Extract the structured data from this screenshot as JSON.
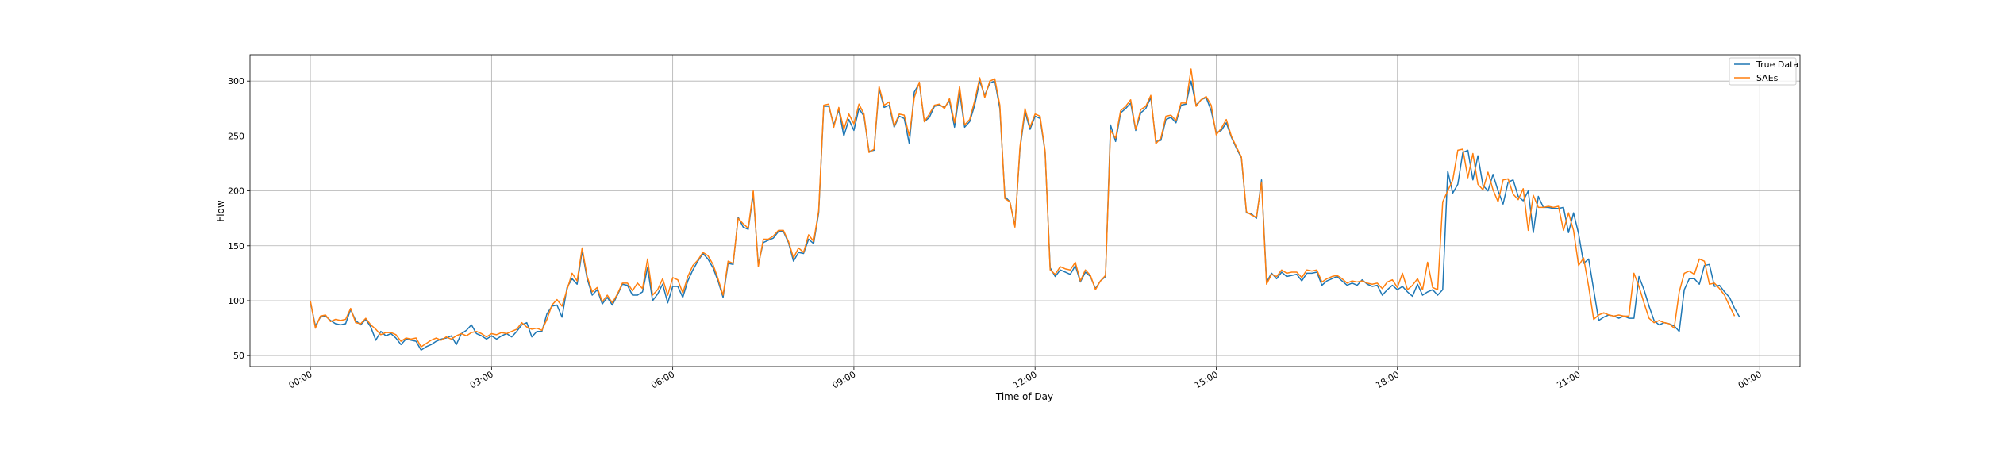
{
  "chart_data": {
    "type": "line",
    "title": "",
    "xlabel": "Time of Day",
    "ylabel": "Flow",
    "xlim": [
      "23:00",
      "24:40"
    ],
    "ylim": [
      40,
      324
    ],
    "x_tick_labels": [
      "00:00",
      "03:00",
      "06:00",
      "09:00",
      "12:00",
      "15:00",
      "18:00",
      "21:00",
      "00:00"
    ],
    "y_ticks": [
      50,
      100,
      150,
      200,
      250,
      300
    ],
    "grid": true,
    "legend_placement": "top-right",
    "x_interval_minutes": 5,
    "x_start": "00:00",
    "series": [
      {
        "name": "True Data",
        "color": "#1f77b4",
        "values": [
          99,
          77,
          85,
          86,
          82,
          79,
          78,
          79,
          92,
          82,
          78,
          83,
          76,
          64,
          72,
          68,
          70,
          66,
          60,
          65,
          64,
          63,
          55,
          58,
          60,
          63,
          65,
          66,
          68,
          60,
          70,
          73,
          78,
          70,
          68,
          65,
          68,
          65,
          68,
          70,
          67,
          72,
          78,
          80,
          67,
          72,
          72,
          88,
          95,
          96,
          85,
          112,
          120,
          115,
          145,
          120,
          105,
          110,
          97,
          103,
          96,
          105,
          115,
          114,
          105,
          105,
          108,
          130,
          100,
          106,
          115,
          98,
          113,
          113,
          103,
          118,
          128,
          136,
          143,
          138,
          130,
          118,
          103,
          134,
          133,
          176,
          167,
          165,
          197,
          133,
          153,
          155,
          157,
          163,
          163,
          153,
          136,
          144,
          143,
          156,
          152,
          180,
          277,
          277,
          260,
          274,
          250,
          265,
          255,
          275,
          268,
          236,
          237,
          293,
          276,
          278,
          258,
          268,
          266,
          243,
          290,
          298,
          263,
          267,
          277,
          278,
          276,
          282,
          258,
          290,
          258,
          263,
          278,
          300,
          287,
          298,
          300,
          275,
          195,
          190,
          168,
          238,
          272,
          256,
          268,
          266,
          235,
          130,
          122,
          128,
          126,
          124,
          132,
          117,
          126,
          122,
          111,
          118,
          122,
          260,
          245,
          271,
          275,
          280,
          255,
          271,
          275,
          285,
          245,
          246,
          265,
          267,
          262,
          278,
          279,
          300,
          278,
          283,
          285,
          273,
          253,
          255,
          262,
          249,
          239,
          230,
          180,
          179,
          175,
          210,
          117,
          125,
          120,
          126,
          122,
          123,
          124,
          118,
          125,
          125,
          126,
          114,
          118,
          120,
          122,
          118,
          114,
          116,
          114,
          119,
          115,
          113,
          114,
          105,
          110,
          114,
          110,
          113,
          108,
          104,
          115,
          105,
          108,
          110,
          105,
          110,
          218,
          198,
          206,
          235,
          237,
          210,
          232,
          205,
          200,
          215,
          200,
          188,
          208,
          210,
          195,
          191,
          200,
          162,
          195,
          185,
          185,
          184,
          184,
          185,
          162,
          180,
          161,
          134,
          138,
          110,
          82,
          85,
          87,
          86,
          84,
          86,
          84,
          84,
          122,
          110,
          95,
          82,
          78,
          80,
          79,
          77,
          72,
          110,
          120,
          120,
          115,
          132,
          133,
          113,
          114,
          108,
          103,
          93,
          85
        ]
      },
      {
        "name": "SAEs",
        "color": "#ff7f0e",
        "values": [
          100,
          75,
          86,
          87,
          81,
          83,
          82,
          83,
          93,
          80,
          79,
          84,
          78,
          74,
          69,
          71,
          71,
          69,
          63,
          66,
          65,
          66,
          58,
          61,
          64,
          66,
          64,
          67,
          65,
          68,
          70,
          68,
          71,
          72,
          70,
          67,
          70,
          69,
          71,
          70,
          72,
          74,
          80,
          76,
          74,
          75,
          73,
          83,
          96,
          101,
          95,
          110,
          125,
          118,
          148,
          122,
          108,
          112,
          99,
          105,
          98,
          106,
          116,
          116,
          109,
          116,
          111,
          138,
          105,
          110,
          120,
          105,
          121,
          119,
          107,
          122,
          132,
          137,
          144,
          141,
          133,
          120,
          105,
          136,
          134,
          175,
          170,
          166,
          200,
          131,
          156,
          156,
          159,
          164,
          164,
          154,
          139,
          148,
          144,
          160,
          154,
          182,
          278,
          279,
          258,
          276,
          256,
          270,
          261,
          279,
          270,
          235,
          238,
          295,
          278,
          281,
          259,
          270,
          269,
          250,
          285,
          299,
          263,
          270,
          278,
          279,
          275,
          284,
          262,
          295,
          260,
          265,
          282,
          303,
          285,
          300,
          302,
          278,
          193,
          190,
          167,
          240,
          275,
          258,
          270,
          268,
          236,
          128,
          124,
          131,
          129,
          128,
          135,
          118,
          128,
          123,
          110,
          118,
          123,
          255,
          248,
          273,
          277,
          283,
          256,
          274,
          277,
          287,
          243,
          248,
          268,
          269,
          264,
          280,
          280,
          311,
          277,
          283,
          286,
          278,
          251,
          257,
          265,
          250,
          240,
          231,
          181,
          178,
          176,
          208,
          115,
          124,
          122,
          128,
          125,
          126,
          126,
          121,
          128,
          127,
          128,
          117,
          120,
          122,
          123,
          120,
          116,
          118,
          117,
          118,
          116,
          115,
          116,
          111,
          117,
          119,
          112,
          125,
          110,
          114,
          120,
          110,
          135,
          112,
          110,
          190,
          200,
          210,
          237,
          238,
          212,
          234,
          206,
          201,
          217,
          201,
          190,
          210,
          211,
          197,
          192,
          202,
          164,
          196,
          185,
          185,
          186,
          185,
          186,
          164,
          180,
          164,
          132,
          139,
          113,
          83,
          87,
          89,
          87,
          86,
          87,
          86,
          86,
          125,
          113,
          98,
          84,
          80,
          82,
          80,
          79,
          75,
          108,
          125,
          127,
          124,
          138,
          136,
          115,
          116,
          111,
          105,
          95,
          86
        ]
      }
    ]
  }
}
